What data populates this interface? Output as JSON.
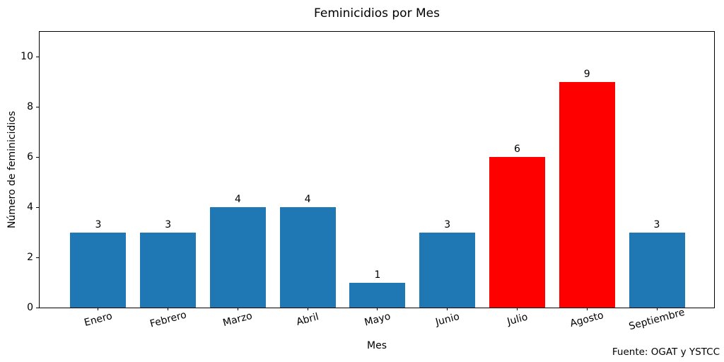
{
  "colors": {
    "bar_default": "#1f77b4",
    "bar_highlight": "#ff0000",
    "axis": "#000000",
    "background": "#ffffff",
    "text": "#000000"
  },
  "chart_data": {
    "type": "bar",
    "title": "Feminicidios por Mes",
    "xlabel": "Mes",
    "ylabel": "Número de feminicidios",
    "source": "Fuente: OGAT y YSTCC",
    "categories": [
      "Enero",
      "Febrero",
      "Marzo",
      "Abril",
      "Mayo",
      "Junio",
      "Julio",
      "Agosto",
      "Septiembre"
    ],
    "values": [
      3,
      3,
      4,
      4,
      1,
      3,
      6,
      9,
      3
    ],
    "value_labels": [
      "3",
      "3",
      "4",
      "4",
      "1",
      "3",
      "6",
      "9",
      "3"
    ],
    "bar_colors": [
      "#1f77b4",
      "#1f77b4",
      "#1f77b4",
      "#1f77b4",
      "#1f77b4",
      "#1f77b4",
      "#ff0000",
      "#ff0000",
      "#1f77b4"
    ],
    "ylim": [
      0,
      11
    ],
    "yticks": [
      0,
      2,
      4,
      6,
      8,
      10
    ],
    "grid": false,
    "legend": null
  }
}
